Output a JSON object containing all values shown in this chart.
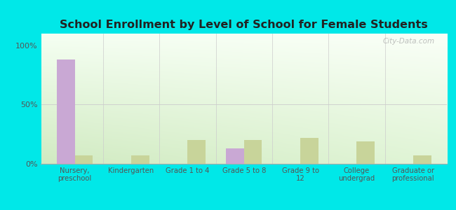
{
  "title": "School Enrollment by Level of School for Female Students",
  "categories": [
    "Nursery,\npreschool",
    "Kindergarten",
    "Grade 1 to 4",
    "Grade 5 to 8",
    "Grade 9 to\n12",
    "College\nundergrad",
    "Graduate or\nprofessional"
  ],
  "piney_view": [
    88,
    0,
    0,
    13,
    0,
    0,
    0
  ],
  "west_virginia": [
    7,
    7,
    20,
    20,
    22,
    19,
    7
  ],
  "piney_color": "#c9a8d4",
  "wv_color": "#c8d49a",
  "bg_outer": "#00e8e8",
  "yticks": [
    0,
    50,
    100
  ],
  "ylabels": [
    "0%",
    "50%",
    "100%"
  ],
  "ylim": [
    0,
    110
  ],
  "watermark": "City-Data.com",
  "bar_width": 0.32
}
